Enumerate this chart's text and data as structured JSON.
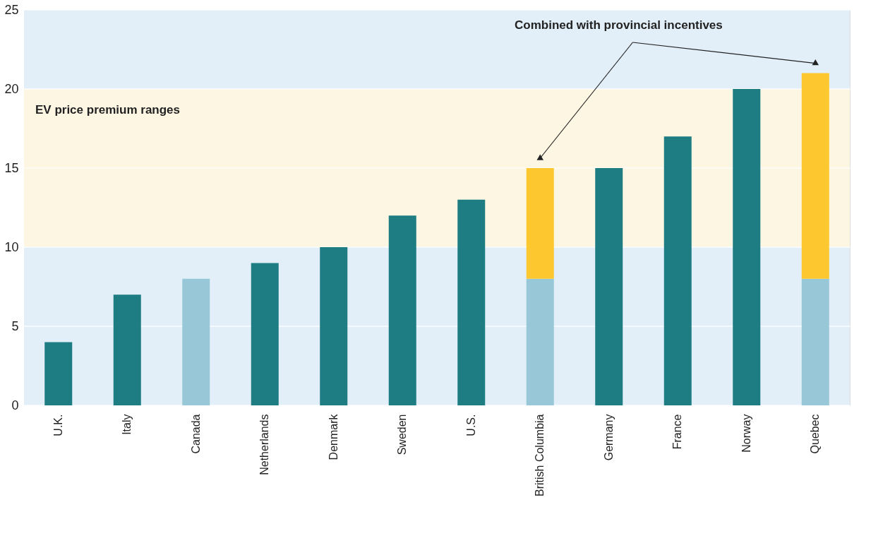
{
  "chart_data": {
    "type": "bar",
    "stacked": true,
    "categories": [
      "U.K.",
      "Italy",
      "Canada",
      "Netherlands",
      "Denmark",
      "Sweden",
      "U.S.",
      "British Columbia",
      "Germany",
      "France",
      "Norway",
      "Quebec"
    ],
    "series": [
      {
        "colors": [
          "#1d7d83",
          "#1d7d83",
          "#98c8d7",
          "#1d7d83",
          "#1d7d83",
          "#1d7d83",
          "#1d7d83",
          "#98c8d7",
          "#1d7d83",
          "#1d7d83",
          "#1d7d83",
          "#98c8d7"
        ],
        "values": [
          4,
          7,
          8,
          9,
          10,
          12,
          13,
          8,
          15,
          17,
          20,
          8
        ]
      },
      {
        "color": "#fdc82f",
        "values": [
          null,
          null,
          null,
          null,
          null,
          null,
          null,
          7,
          null,
          null,
          null,
          13
        ]
      }
    ],
    "ylim": [
      0,
      25
    ],
    "yticks": [
      0,
      5,
      10,
      15,
      20,
      25
    ],
    "grid": "y",
    "bands": [
      {
        "axis": "y",
        "from": 0,
        "to": 25,
        "color": "#e2eff8"
      },
      {
        "axis": "y",
        "from": 10,
        "to": 20,
        "color": "#fdf6e3",
        "label": "EV price premium ranges"
      }
    ],
    "annotations": [
      "Combined with provincial incentives"
    ]
  }
}
